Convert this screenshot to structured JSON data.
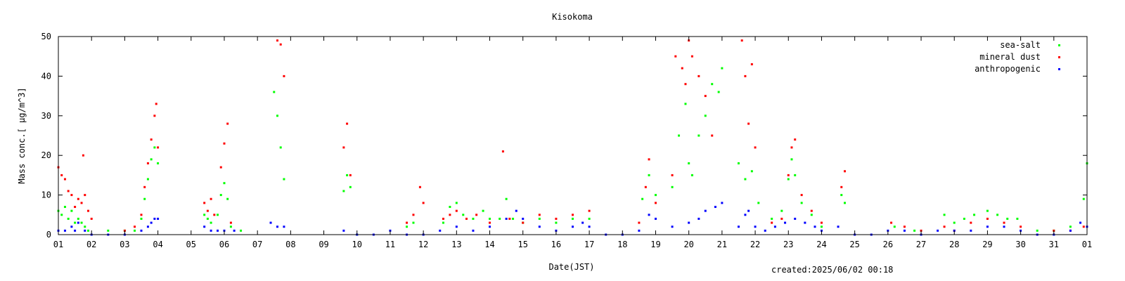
{
  "chart_data": {
    "type": "scatter",
    "title": "Kisokoma",
    "xlabel": "Date(JST)",
    "ylabel": "Mass conc.[ μg/m^3]",
    "ylim": [
      0,
      50
    ],
    "yticks": [
      "0",
      "10",
      "20",
      "30",
      "40",
      "50"
    ],
    "xlim": [
      1,
      32
    ],
    "xticks": [
      "01",
      "02",
      "03",
      "04",
      "05",
      "06",
      "07",
      "08",
      "09",
      "10",
      "11",
      "12",
      "13",
      "14",
      "15",
      "16",
      "17",
      "18",
      "19",
      "20",
      "21",
      "22",
      "23",
      "24",
      "25",
      "26",
      "27",
      "28",
      "29",
      "30",
      "31",
      "01"
    ],
    "legend_position": "top-right",
    "grid": false,
    "series": [
      {
        "name": "sea-salt",
        "color": "#00ff00",
        "points": [
          [
            1.0,
            6
          ],
          [
            1.1,
            5
          ],
          [
            1.2,
            7
          ],
          [
            1.3,
            4
          ],
          [
            1.4,
            6
          ],
          [
            1.5,
            3
          ],
          [
            1.6,
            4
          ],
          [
            1.7,
            3
          ],
          [
            1.8,
            2
          ],
          [
            1.9,
            1
          ],
          [
            2.5,
            1
          ],
          [
            3.0,
            1
          ],
          [
            3.3,
            1
          ],
          [
            3.5,
            4
          ],
          [
            3.6,
            9
          ],
          [
            3.7,
            14
          ],
          [
            3.8,
            19
          ],
          [
            3.9,
            22
          ],
          [
            4.0,
            18
          ],
          [
            5.4,
            5
          ],
          [
            5.5,
            4
          ],
          [
            5.6,
            3
          ],
          [
            5.8,
            5
          ],
          [
            5.9,
            10
          ],
          [
            6.0,
            13
          ],
          [
            6.1,
            9
          ],
          [
            6.2,
            2
          ],
          [
            6.5,
            1
          ],
          [
            7.5,
            36
          ],
          [
            7.6,
            30
          ],
          [
            7.7,
            22
          ],
          [
            7.8,
            14
          ],
          [
            9.6,
            11
          ],
          [
            9.7,
            15
          ],
          [
            9.8,
            12
          ],
          [
            10.0,
            0
          ],
          [
            11.5,
            2
          ],
          [
            11.7,
            3
          ],
          [
            12.6,
            3
          ],
          [
            12.8,
            7
          ],
          [
            13.0,
            8
          ],
          [
            13.2,
            5
          ],
          [
            13.5,
            4
          ],
          [
            13.8,
            6
          ],
          [
            14.0,
            4
          ],
          [
            14.3,
            4
          ],
          [
            14.5,
            9
          ],
          [
            14.7,
            4
          ],
          [
            15.0,
            3
          ],
          [
            15.5,
            4
          ],
          [
            16.0,
            3
          ],
          [
            16.5,
            4
          ],
          [
            17.0,
            4
          ],
          [
            18.6,
            9
          ],
          [
            18.8,
            15
          ],
          [
            19.0,
            10
          ],
          [
            19.5,
            12
          ],
          [
            19.7,
            25
          ],
          [
            19.9,
            33
          ],
          [
            20.0,
            18
          ],
          [
            20.1,
            15
          ],
          [
            20.3,
            25
          ],
          [
            20.5,
            30
          ],
          [
            20.7,
            38
          ],
          [
            20.9,
            36
          ],
          [
            21.0,
            42
          ],
          [
            21.5,
            18
          ],
          [
            21.7,
            14
          ],
          [
            21.9,
            16
          ],
          [
            22.1,
            8
          ],
          [
            22.5,
            4
          ],
          [
            22.8,
            6
          ],
          [
            23.0,
            14
          ],
          [
            23.1,
            19
          ],
          [
            23.2,
            15
          ],
          [
            23.4,
            8
          ],
          [
            23.7,
            5
          ],
          [
            24.0,
            2
          ],
          [
            24.6,
            10
          ],
          [
            24.7,
            8
          ],
          [
            26.2,
            2
          ],
          [
            26.8,
            1
          ],
          [
            27.7,
            5
          ],
          [
            28.0,
            3
          ],
          [
            28.3,
            4
          ],
          [
            28.6,
            5
          ],
          [
            29.0,
            6
          ],
          [
            29.3,
            5
          ],
          [
            29.6,
            4
          ],
          [
            29.9,
            4
          ],
          [
            30.5,
            1
          ],
          [
            31.0,
            1
          ],
          [
            31.5,
            2
          ],
          [
            31.9,
            9
          ],
          [
            32.0,
            18
          ]
        ]
      },
      {
        "name": "mineral dust",
        "color": "#ff0000",
        "points": [
          [
            1.0,
            17
          ],
          [
            1.1,
            15
          ],
          [
            1.2,
            14
          ],
          [
            1.3,
            11
          ],
          [
            1.4,
            10
          ],
          [
            1.5,
            7
          ],
          [
            1.6,
            9
          ],
          [
            1.7,
            8
          ],
          [
            1.75,
            20
          ],
          [
            1.8,
            10
          ],
          [
            1.9,
            6
          ],
          [
            2.0,
            4
          ],
          [
            3.0,
            1
          ],
          [
            3.3,
            2
          ],
          [
            3.5,
            5
          ],
          [
            3.6,
            12
          ],
          [
            3.7,
            18
          ],
          [
            3.8,
            24
          ],
          [
            3.9,
            30
          ],
          [
            3.95,
            33
          ],
          [
            4.0,
            22
          ],
          [
            5.4,
            8
          ],
          [
            5.5,
            6
          ],
          [
            5.6,
            9
          ],
          [
            5.7,
            5
          ],
          [
            5.9,
            17
          ],
          [
            6.0,
            23
          ],
          [
            6.1,
            28
          ],
          [
            6.2,
            3
          ],
          [
            7.6,
            49
          ],
          [
            7.7,
            48
          ],
          [
            7.8,
            40
          ],
          [
            9.6,
            22
          ],
          [
            9.7,
            28
          ],
          [
            9.8,
            15
          ],
          [
            11.5,
            3
          ],
          [
            11.7,
            5
          ],
          [
            11.9,
            12
          ],
          [
            12.0,
            8
          ],
          [
            12.6,
            4
          ],
          [
            12.8,
            5
          ],
          [
            13.0,
            6
          ],
          [
            13.3,
            4
          ],
          [
            13.6,
            5
          ],
          [
            14.0,
            3
          ],
          [
            14.4,
            21
          ],
          [
            14.6,
            4
          ],
          [
            15.0,
            3
          ],
          [
            15.5,
            5
          ],
          [
            16.0,
            4
          ],
          [
            16.5,
            5
          ],
          [
            17.0,
            6
          ],
          [
            18.5,
            3
          ],
          [
            18.7,
            12
          ],
          [
            18.8,
            19
          ],
          [
            19.0,
            8
          ],
          [
            19.5,
            15
          ],
          [
            19.6,
            45
          ],
          [
            19.8,
            42
          ],
          [
            19.9,
            38
          ],
          [
            20.0,
            49
          ],
          [
            20.1,
            45
          ],
          [
            20.3,
            40
          ],
          [
            20.5,
            35
          ],
          [
            20.7,
            25
          ],
          [
            21.6,
            49
          ],
          [
            21.7,
            40
          ],
          [
            21.8,
            28
          ],
          [
            21.9,
            43
          ],
          [
            22.0,
            22
          ],
          [
            22.5,
            3
          ],
          [
            22.8,
            4
          ],
          [
            23.0,
            15
          ],
          [
            23.1,
            22
          ],
          [
            23.2,
            24
          ],
          [
            23.4,
            10
          ],
          [
            23.7,
            6
          ],
          [
            24.0,
            3
          ],
          [
            24.6,
            12
          ],
          [
            24.7,
            16
          ],
          [
            26.1,
            3
          ],
          [
            26.5,
            2
          ],
          [
            27.0,
            1
          ],
          [
            27.7,
            2
          ],
          [
            28.0,
            1
          ],
          [
            28.5,
            3
          ],
          [
            29.0,
            4
          ],
          [
            29.5,
            3
          ],
          [
            30.0,
            2
          ],
          [
            31.0,
            1
          ],
          [
            31.5,
            1
          ],
          [
            31.9,
            2
          ]
        ]
      },
      {
        "name": "anthropogenic",
        "color": "#0000ff",
        "points": [
          [
            1.0,
            1
          ],
          [
            1.2,
            1
          ],
          [
            1.4,
            2
          ],
          [
            1.5,
            1
          ],
          [
            1.6,
            3
          ],
          [
            1.8,
            1
          ],
          [
            2.0,
            0
          ],
          [
            2.5,
            0
          ],
          [
            3.0,
            0
          ],
          [
            3.5,
            1
          ],
          [
            3.7,
            2
          ],
          [
            3.8,
            3
          ],
          [
            3.9,
            4
          ],
          [
            4.0,
            4
          ],
          [
            5.4,
            2
          ],
          [
            5.6,
            1
          ],
          [
            5.8,
            1
          ],
          [
            6.0,
            1
          ],
          [
            6.3,
            1
          ],
          [
            7.4,
            3
          ],
          [
            7.6,
            2
          ],
          [
            7.8,
            2
          ],
          [
            9.6,
            1
          ],
          [
            10.0,
            0
          ],
          [
            10.5,
            0
          ],
          [
            11.0,
            1
          ],
          [
            11.5,
            0
          ],
          [
            12.0,
            0
          ],
          [
            12.5,
            1
          ],
          [
            13.0,
            2
          ],
          [
            13.5,
            1
          ],
          [
            14.0,
            2
          ],
          [
            14.5,
            4
          ],
          [
            14.8,
            6
          ],
          [
            15.0,
            4
          ],
          [
            15.5,
            2
          ],
          [
            16.0,
            1
          ],
          [
            16.5,
            2
          ],
          [
            16.8,
            3
          ],
          [
            17.0,
            2
          ],
          [
            17.5,
            0
          ],
          [
            18.0,
            0
          ],
          [
            18.5,
            1
          ],
          [
            18.8,
            5
          ],
          [
            19.0,
            4
          ],
          [
            19.5,
            2
          ],
          [
            20.0,
            3
          ],
          [
            20.3,
            4
          ],
          [
            20.5,
            6
          ],
          [
            20.8,
            7
          ],
          [
            21.0,
            8
          ],
          [
            21.5,
            2
          ],
          [
            21.7,
            5
          ],
          [
            21.8,
            6
          ],
          [
            22.0,
            2
          ],
          [
            22.3,
            1
          ],
          [
            22.6,
            2
          ],
          [
            22.9,
            3
          ],
          [
            23.2,
            4
          ],
          [
            23.5,
            3
          ],
          [
            23.8,
            2
          ],
          [
            24.0,
            1
          ],
          [
            24.5,
            2
          ],
          [
            25.0,
            0
          ],
          [
            25.5,
            0
          ],
          [
            26.0,
            1
          ],
          [
            26.5,
            1
          ],
          [
            27.0,
            0
          ],
          [
            27.5,
            1
          ],
          [
            28.0,
            1
          ],
          [
            28.5,
            1
          ],
          [
            29.0,
            2
          ],
          [
            29.5,
            2
          ],
          [
            30.0,
            1
          ],
          [
            30.5,
            0
          ],
          [
            31.0,
            0
          ],
          [
            31.5,
            1
          ],
          [
            31.8,
            3
          ],
          [
            32.0,
            2
          ]
        ]
      }
    ]
  },
  "footer": {
    "created": "created:2025/06/02 00:18"
  }
}
